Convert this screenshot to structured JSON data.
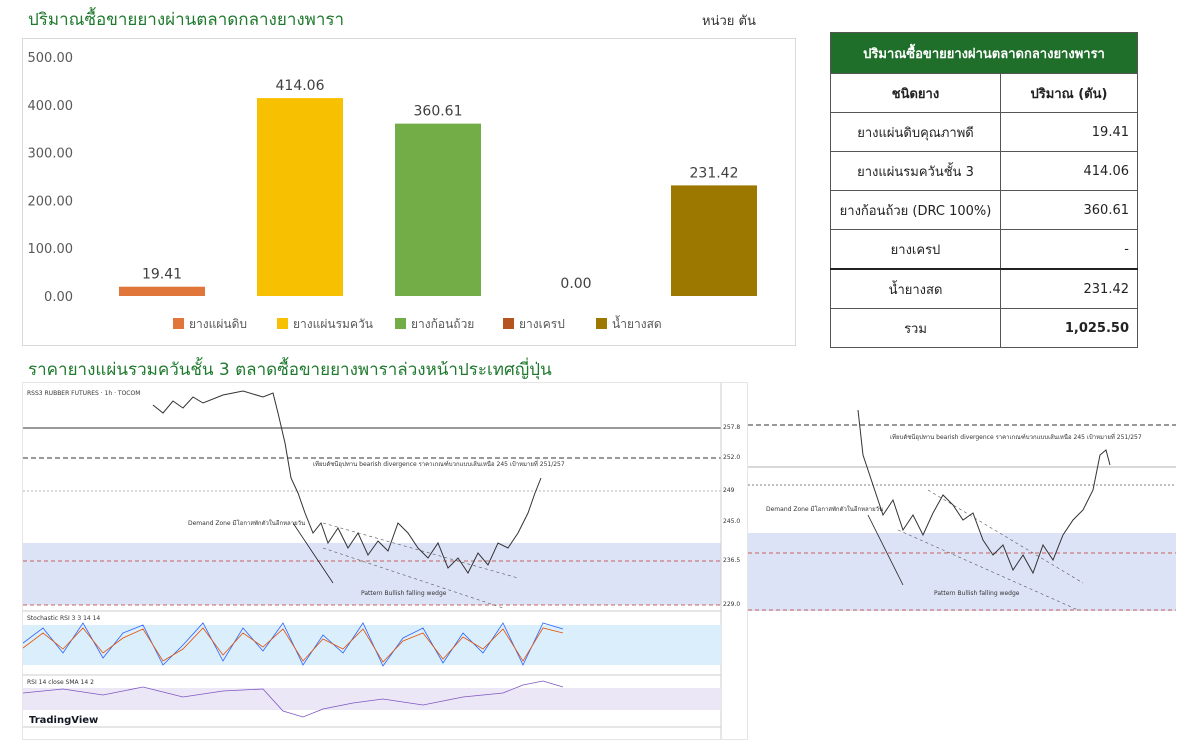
{
  "header": {
    "title": "ปริมาณซื้อขายยางผ่านตลาดกลางยางพารา",
    "unit": "หน่วย ตัน"
  },
  "chart_data": {
    "type": "bar",
    "categories": [
      "ยางแผ่นดิบ",
      "ยางแผ่นรมควัน",
      "ยางก้อนถ้วย",
      "ยางเครป",
      "น้ำยางสด"
    ],
    "values": [
      19.41,
      414.06,
      360.61,
      0.0,
      231.42
    ],
    "value_labels": [
      "19.41",
      "414.06",
      "360.61",
      "0.00",
      "231.42"
    ],
    "colors": [
      "#e0763a",
      "#f7c000",
      "#72ad47",
      "#b5541e",
      "#9c7800"
    ],
    "yticks": [
      "0.00",
      "100.00",
      "200.00",
      "300.00",
      "400.00",
      "500.00"
    ],
    "ylim": [
      0,
      500
    ],
    "legend_position": "bottom",
    "grid": false
  },
  "table": {
    "title": "ปริมาณซื้อขายยางผ่านตลาดกลางยางพารา",
    "col1": "ชนิดยาง",
    "col2": "ปริมาณ (ตัน)",
    "rows": [
      {
        "name": "ยางแผ่นดิบคุณภาพดี",
        "value": "19.41"
      },
      {
        "name": "ยางแผ่นรมควันชั้น 3",
        "value": "414.06"
      },
      {
        "name": "ยางก้อนถ้วย (DRC 100%)",
        "value": "360.61"
      },
      {
        "name": "ยางเครป",
        "value": "-"
      },
      {
        "name": "น้ำยางสด",
        "value": "231.42"
      }
    ],
    "total_label": "รวม",
    "total_value": "1,025.50"
  },
  "section2": {
    "title": "ราคายางแผ่นรวมควันชั้น 3 ตลาดซื้อขายยางพาราล่วงหน้าประเทศญี่ปุ่น"
  },
  "tradingview": {
    "symbol": "RSS3 RUBBER FUTURES · 1h · TOCOM",
    "branding": "TradingView",
    "annotation_main": "เทียบดัชนีอุปทาน bearish divergence ราคาเกณฑ์บวกแบบเส้นเหนือ 245 เป้าหมายที่ 251/257",
    "demand_zone": "Demand Zone มีโอกาสพักตัวในอีกหลายวัน",
    "pattern": "Pattern Bullish falling wedge",
    "levels": [
      "257.8",
      "252.0",
      "249",
      "245.0",
      "236.5",
      "229.0"
    ],
    "indicator1": "Stochastic RSI 3 3 14 14",
    "indicator2": "RSI 14 close SMA 14 2"
  }
}
